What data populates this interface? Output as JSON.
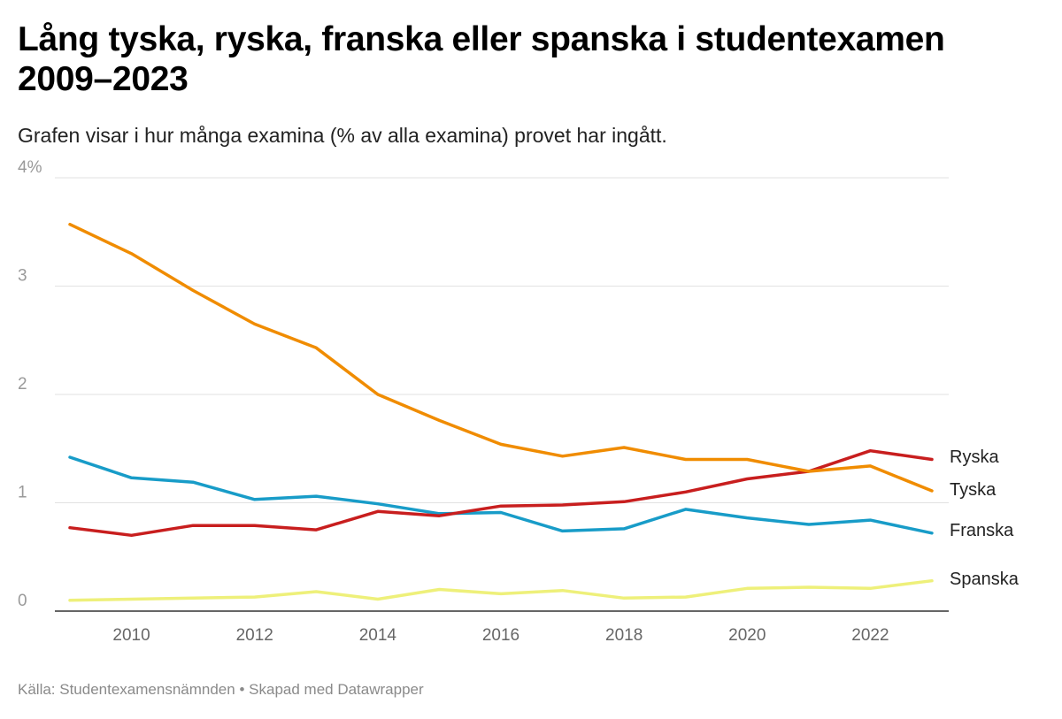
{
  "header": {
    "title": "Lång tyska, ryska, franska eller spanska i studentexamen 2009–2023",
    "subtitle": "Grafen visar i hur många examina (% av alla examina) provet har ingått."
  },
  "footer": {
    "source": "Källa: Studentexamensnämnden",
    "separator": "•",
    "credit": "Skapad med Datawrapper"
  },
  "chart_data": {
    "type": "line",
    "title": "Lång tyska, ryska, franska eller spanska i studentexamen 2009–2023",
    "subtitle": "Grafen visar i hur många examina (% av alla examina) provet har ingått.",
    "x": [
      2009,
      2010,
      2011,
      2012,
      2013,
      2014,
      2015,
      2016,
      2017,
      2018,
      2019,
      2020,
      2021,
      2022,
      2023
    ],
    "xlim": [
      2009,
      2023
    ],
    "ylim": [
      0,
      4
    ],
    "x_ticks": [
      2010,
      2012,
      2014,
      2016,
      2018,
      2020,
      2022
    ],
    "y_ticks": [
      {
        "value": 0,
        "label": "0"
      },
      {
        "value": 1,
        "label": "1"
      },
      {
        "value": 2,
        "label": "2"
      },
      {
        "value": 3,
        "label": "3"
      },
      {
        "value": 4,
        "label": "4%"
      }
    ],
    "grid": true,
    "legend": "direct labels at line ends",
    "series": [
      {
        "name": "Tyska",
        "color": "#f08c00",
        "values": [
          3.57,
          3.3,
          2.96,
          2.65,
          2.43,
          2.0,
          1.76,
          1.54,
          1.43,
          1.51,
          1.4,
          1.4,
          1.29,
          1.34,
          1.11
        ]
      },
      {
        "name": "Ryska",
        "color": "#c81e1e",
        "values": [
          0.77,
          0.7,
          0.79,
          0.79,
          0.75,
          0.92,
          0.88,
          0.97,
          0.98,
          1.01,
          1.1,
          1.22,
          1.29,
          1.48,
          1.4
        ]
      },
      {
        "name": "Franska",
        "color": "#189cc8",
        "values": [
          1.42,
          1.23,
          1.19,
          1.03,
          1.06,
          0.99,
          0.9,
          0.91,
          0.74,
          0.76,
          0.94,
          0.86,
          0.8,
          0.84,
          0.72
        ]
      },
      {
        "name": "Spanska",
        "color": "#eef07a",
        "values": [
          0.1,
          0.11,
          0.12,
          0.13,
          0.18,
          0.11,
          0.2,
          0.16,
          0.19,
          0.12,
          0.13,
          0.21,
          0.22,
          0.21,
          0.28
        ]
      }
    ]
  }
}
